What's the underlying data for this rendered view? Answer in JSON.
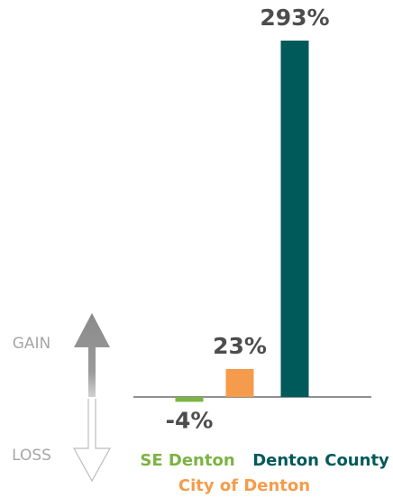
{
  "chart_data": {
    "type": "bar",
    "categories": [
      "SE Denton",
      "City of Denton",
      "Denton County"
    ],
    "values": [
      -4,
      23,
      293
    ],
    "value_labels": [
      "-4%",
      "23%",
      "293%"
    ],
    "colors": [
      "#7cb342",
      "#f59c4c",
      "#005a5a"
    ],
    "gain_label": "GAIN",
    "loss_label": "LOSS"
  }
}
